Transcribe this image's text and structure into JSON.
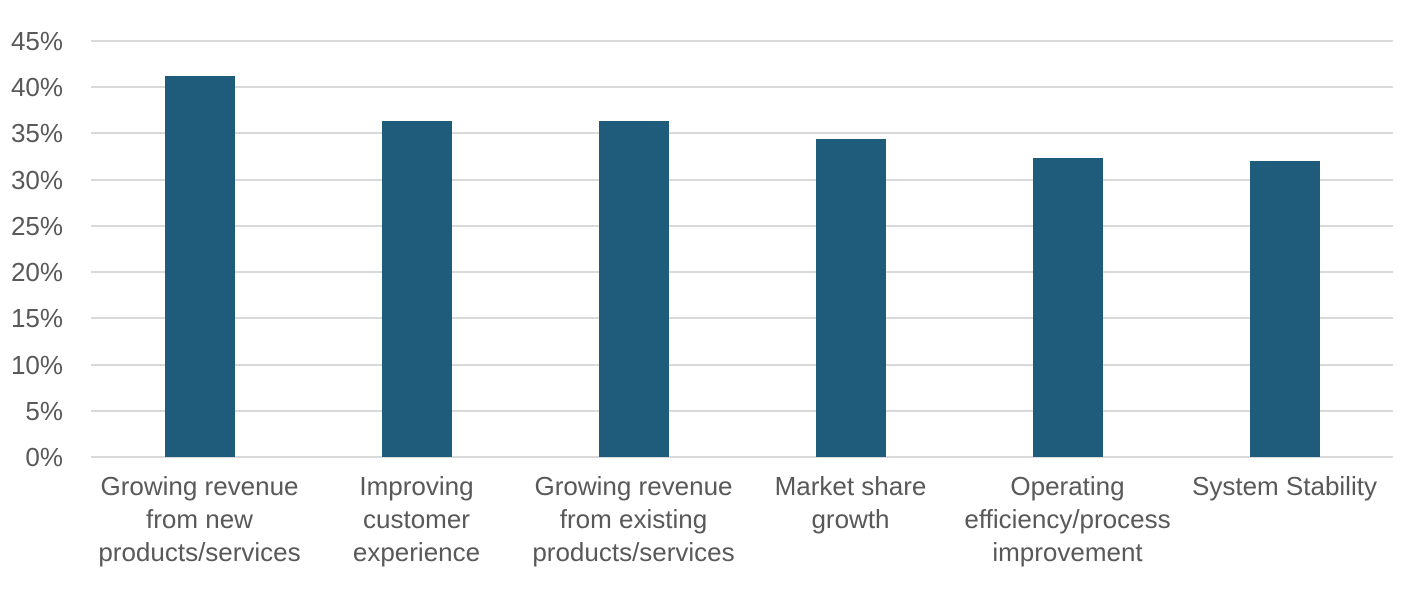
{
  "chart_data": {
    "type": "bar",
    "categories": [
      "Growing revenue from new products/services",
      "Improving customer experience",
      "Growing revenue from existing products/services",
      "Market share growth",
      "Operating efficiency/process improvement",
      "System Stability"
    ],
    "values": [
      41.2,
      36.4,
      36.4,
      34.4,
      32.3,
      32
    ],
    "value_unit": "%",
    "ylim": [
      0,
      45
    ],
    "yticks": [
      0,
      5,
      10,
      15,
      20,
      25,
      30,
      35,
      40,
      45
    ],
    "ytick_labels": [
      "0%",
      "5%",
      "10%",
      "15%",
      "20%",
      "25%",
      "30%",
      "35%",
      "40%",
      "45%"
    ],
    "grid": true,
    "legend": "none",
    "colors": {
      "bar": "#1f5c7c",
      "gridline": "#d9d9d9",
      "axis_label": "#595959",
      "background": "#ffffff"
    }
  }
}
